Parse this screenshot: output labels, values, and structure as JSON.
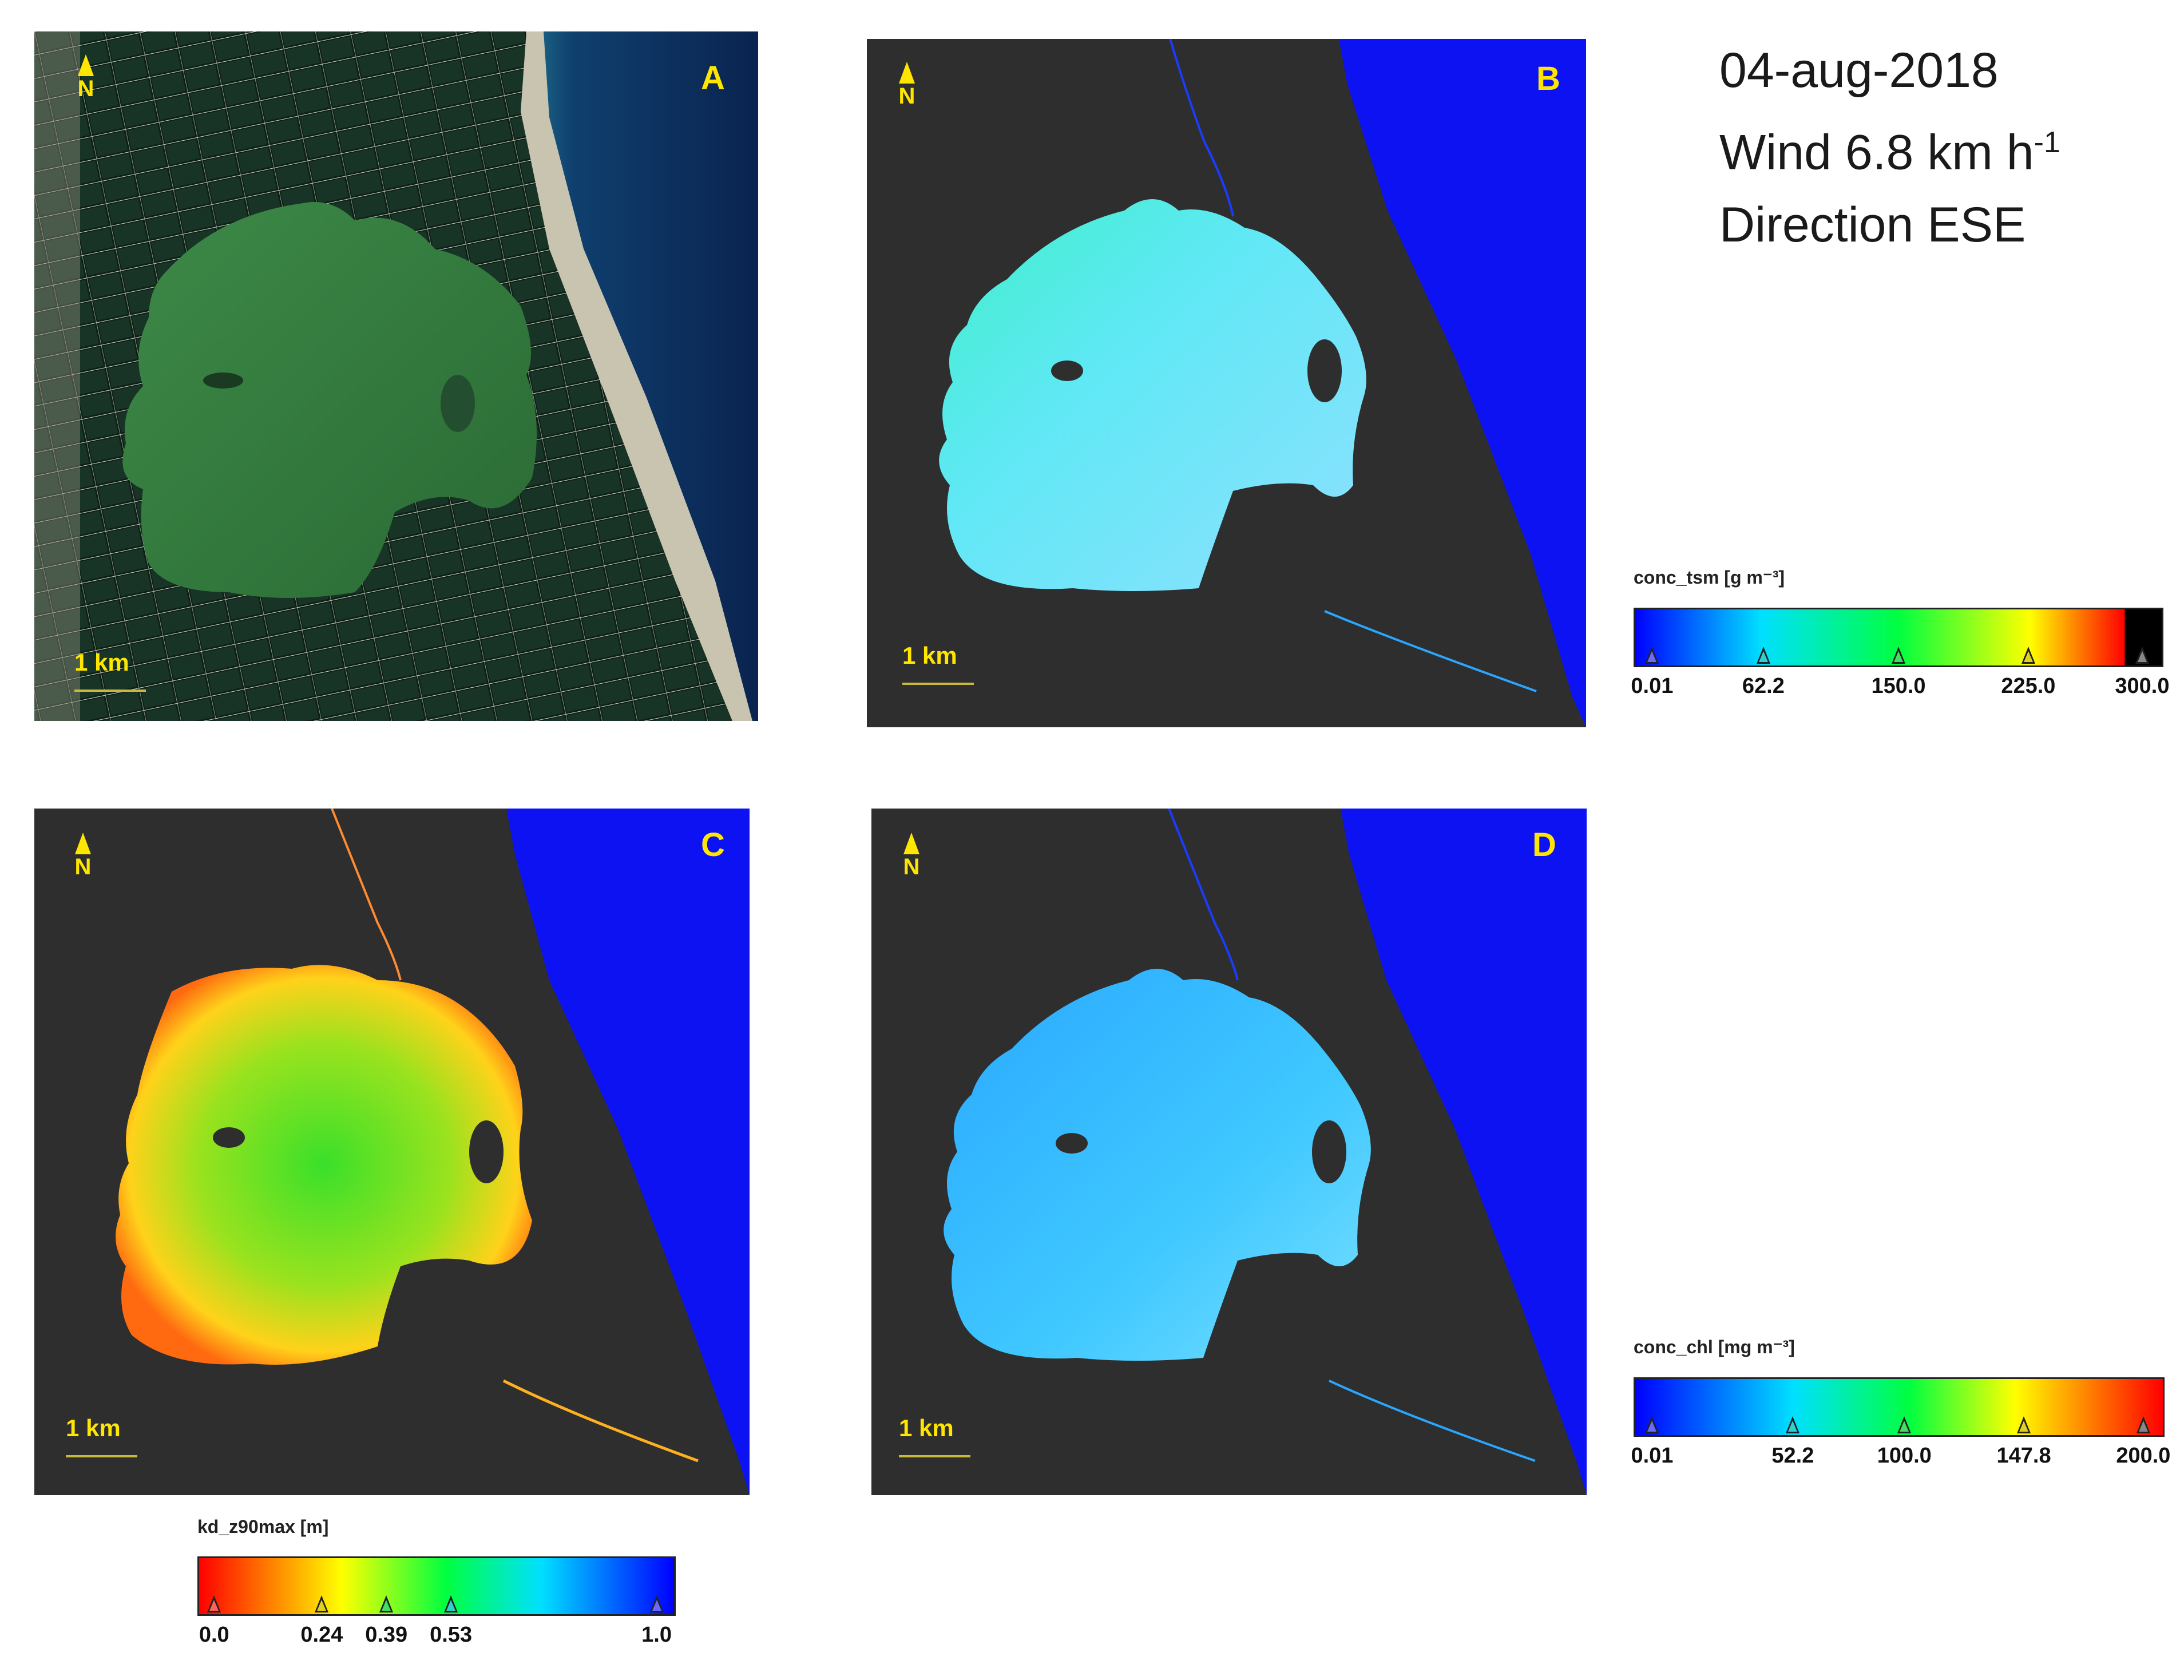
{
  "info": {
    "date": "04-aug-2018",
    "wind_prefix": "Wind 6.8 km h",
    "wind_exp": "-1",
    "direction": "Direction ESE"
  },
  "panels": {
    "A": {
      "label": "A",
      "north": "N",
      "scale": "1 km"
    },
    "B": {
      "label": "B",
      "north": "N",
      "scale": "1 km"
    },
    "C": {
      "label": "C",
      "north": "N",
      "scale": "1 km"
    },
    "D": {
      "label": "D",
      "north": "N",
      "scale": "1 km"
    }
  },
  "legends": {
    "tsm": {
      "title": "conc_tsm [g m⁻³]",
      "ticks": [
        "0.01",
        "62.2",
        "150.0",
        "225.0",
        "300.0"
      ],
      "colors": [
        "#0000ff",
        "#00e0ff",
        "#00ff40",
        "#ffff00",
        "#ff0000",
        "#000000"
      ]
    },
    "chl": {
      "title": "conc_chl [mg m⁻³]",
      "ticks": [
        "0.01",
        "52.2",
        "100.0",
        "147.8",
        "200.0"
      ],
      "colors": [
        "#0000ff",
        "#00e0ff",
        "#00ff40",
        "#ffff00",
        "#ff0000"
      ]
    },
    "kd": {
      "title": "kd_z90max [m]",
      "ticks": [
        "0.0",
        "0.24",
        "0.39",
        "0.53",
        "1.0"
      ],
      "colors": [
        "#ff0000",
        "#ffff00",
        "#00ff40",
        "#00e0ff",
        "#0000ff"
      ]
    }
  },
  "map_colors": {
    "background": "#2e2e2e",
    "sea": "#0c12f2",
    "satellite_land": "#0f1f14",
    "satellite_lagoon": "#2f7a3a",
    "satellite_sea": "#0d2a55"
  }
}
